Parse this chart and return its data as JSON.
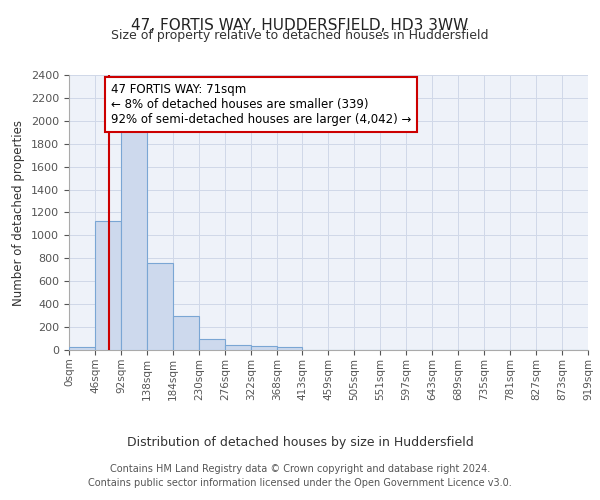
{
  "title": "47, FORTIS WAY, HUDDERSFIELD, HD3 3WW",
  "subtitle": "Size of property relative to detached houses in Huddersfield",
  "xlabel": "Distribution of detached houses by size in Huddersfield",
  "ylabel": "Number of detached properties",
  "bin_edges": [
    0,
    46,
    92,
    138,
    184,
    230,
    276,
    322,
    368,
    413,
    459,
    505,
    551,
    597,
    643,
    689,
    735,
    781,
    827,
    873,
    919
  ],
  "bin_counts": [
    30,
    1130,
    1950,
    760,
    300,
    100,
    45,
    35,
    30,
    0,
    0,
    0,
    0,
    0,
    0,
    0,
    0,
    0,
    0,
    0
  ],
  "bar_facecolor": "#cdd9ed",
  "bar_edgecolor": "#7aa6d4",
  "property_line_x": 71,
  "property_line_color": "#cc0000",
  "annotation_text": "47 FORTIS WAY: 71sqm\n← 8% of detached houses are smaller (339)\n92% of semi-detached houses are larger (4,042) →",
  "annotation_box_edgecolor": "#cc0000",
  "annotation_box_facecolor": "#ffffff",
  "ylim": [
    0,
    2400
  ],
  "yticks": [
    0,
    200,
    400,
    600,
    800,
    1000,
    1200,
    1400,
    1600,
    1800,
    2000,
    2200,
    2400
  ],
  "tick_labels": [
    "0sqm",
    "46sqm",
    "92sqm",
    "138sqm",
    "184sqm",
    "230sqm",
    "276sqm",
    "322sqm",
    "368sqm",
    "413sqm",
    "459sqm",
    "505sqm",
    "551sqm",
    "597sqm",
    "643sqm",
    "689sqm",
    "735sqm",
    "781sqm",
    "827sqm",
    "873sqm",
    "919sqm"
  ],
  "footer_text": "Contains HM Land Registry data © Crown copyright and database right 2024.\nContains public sector information licensed under the Open Government Licence v3.0.",
  "grid_color": "#d0d8e8",
  "background_color": "#eef2f9"
}
